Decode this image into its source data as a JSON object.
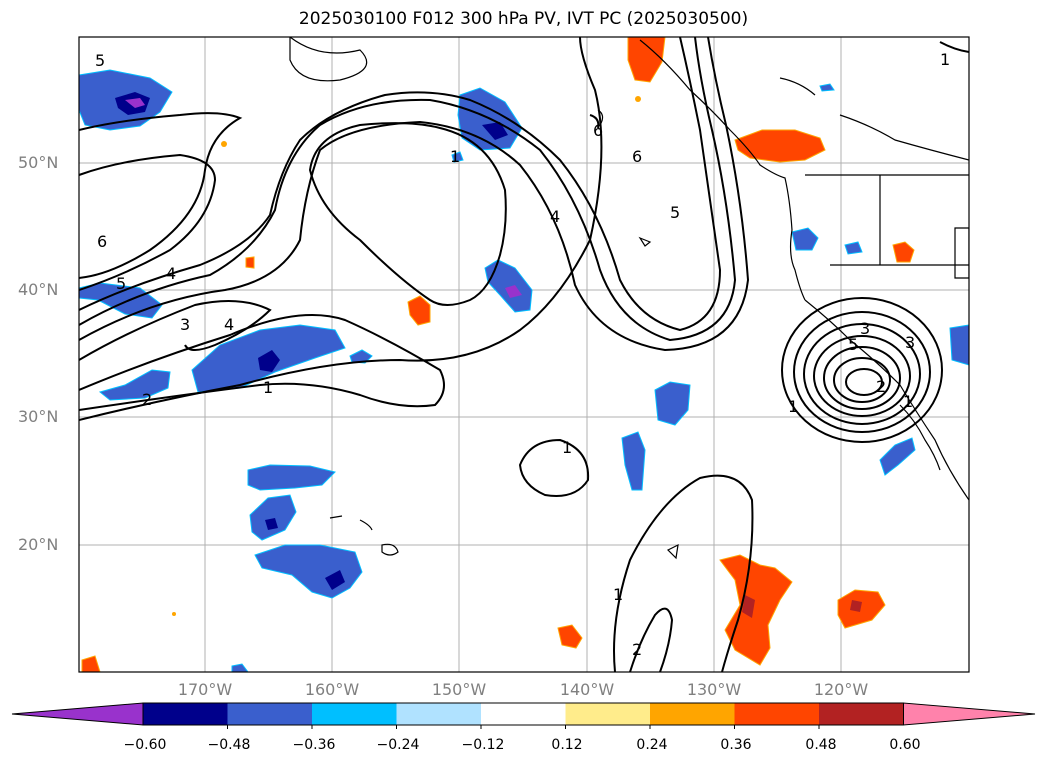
{
  "title": "2025030100 F012 300 hPa PV, IVT PC (2025030500)",
  "lat_labels": [
    "50°N",
    "40°N",
    "30°N",
    "20°N"
  ],
  "lon_labels": [
    "170°W",
    "160°W",
    "150°W",
    "140°W",
    "130°W",
    "120°W"
  ],
  "colorbar": {
    "ticks": [
      "−0.60",
      "−0.48",
      "−0.36",
      "−0.24",
      "−0.12",
      "0.12",
      "0.24",
      "0.36",
      "0.48",
      "0.60"
    ],
    "colors": [
      "#9932cc",
      "#00008b",
      "#3a5fcd",
      "#00bfff",
      "#b0e2ff",
      "#ffffff",
      "#ffec8b",
      "#ffa500",
      "#ff4500",
      "#b22222",
      "#ff82ab"
    ]
  },
  "contour_labels": [
    "5",
    "6",
    "5",
    "4",
    "3",
    "4",
    "1",
    "2",
    "1",
    "6",
    "4",
    "6",
    "5",
    "1",
    "3",
    "5",
    "1",
    "1",
    "2",
    "1",
    "1",
    "3",
    "2"
  ]
}
